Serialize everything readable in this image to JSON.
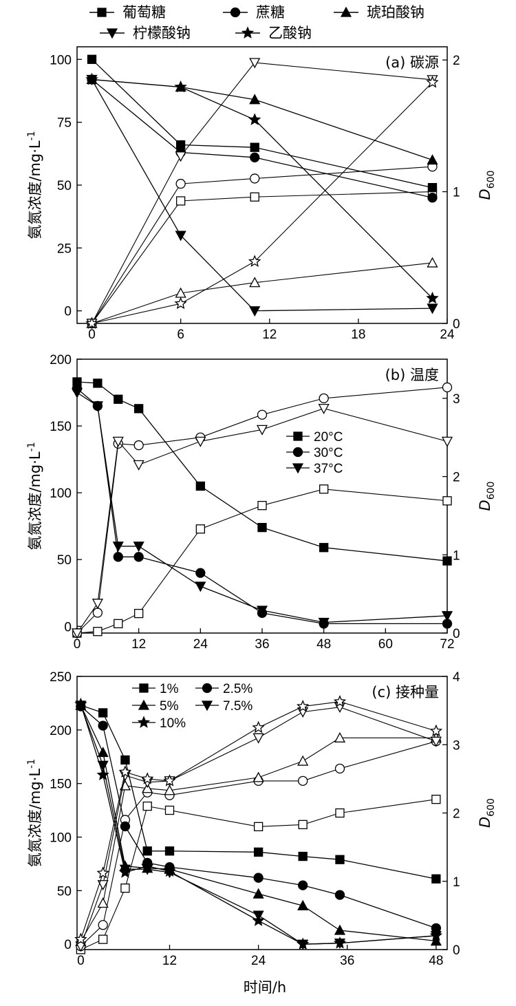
{
  "legend_top": [
    "葡萄糖",
    "蔗糖",
    "琥珀酸钠",
    "柠檬酸钠",
    "乙酸钠"
  ],
  "xlabel": "时间/h",
  "chart_data": [
    {
      "type": "line",
      "title": "(a) 碳源",
      "ylabel": "氨氮浓度/mg·L",
      "ylabel_sup": "-1",
      "y2label": "D",
      "y2label_sub": "600",
      "xlim": [
        -1,
        24
      ],
      "ylim": [
        -5,
        105
      ],
      "y2lim": [
        0,
        2.1
      ],
      "xticks": [
        "0",
        "6",
        "12",
        "18",
        "24"
      ],
      "yticks": [
        "0",
        "25",
        "50",
        "75",
        "100"
      ],
      "y2ticks": [
        "0",
        "1",
        "2"
      ],
      "series": [
        {
          "name": "葡萄糖",
          "marker": "square",
          "x": [
            0,
            6,
            11,
            23
          ],
          "y": [
            100,
            66,
            65,
            49
          ],
          "od": [
            0,
            0.93,
            0.96,
            1.0
          ]
        },
        {
          "name": "蔗糖",
          "marker": "circle",
          "x": [
            0,
            6,
            11,
            23
          ],
          "y": [
            92,
            63,
            61,
            45
          ],
          "od": [
            0,
            1.06,
            1.1,
            1.19
          ]
        },
        {
          "name": "琥珀酸钠",
          "marker": "triangle-up",
          "x": [
            0,
            6,
            11,
            23
          ],
          "y": [
            92,
            89,
            84,
            60
          ],
          "od": [
            0,
            0.23,
            0.31,
            0.46
          ]
        },
        {
          "name": "柠檬酸钠",
          "marker": "triangle-down",
          "x": [
            0,
            6,
            11,
            23
          ],
          "y": [
            92,
            30,
            0,
            1
          ],
          "od": [
            0,
            1.27,
            1.98,
            1.85
          ]
        },
        {
          "name": "乙酸钠",
          "marker": "star",
          "x": [
            0,
            6,
            11,
            23
          ],
          "y": [
            92,
            89,
            76,
            5
          ],
          "od": [
            0,
            0.15,
            0.47,
            1.83
          ]
        }
      ]
    },
    {
      "type": "line",
      "title": "(b) 温度",
      "ylabel": "氨氮浓度/mg·L",
      "ylabel_sup": "-1",
      "y2label": "D",
      "y2label_sub": "600",
      "xlim": [
        0,
        72
      ],
      "ylim": [
        -5,
        200
      ],
      "y2lim": [
        0,
        3.5
      ],
      "xticks": [
        "0",
        "12",
        "24",
        "36",
        "48",
        "60",
        "72"
      ],
      "yticks": [
        "0",
        "50",
        "100",
        "150",
        "200"
      ],
      "y2ticks": [
        "0",
        "1",
        "2",
        "3"
      ],
      "legend": [
        "20°C",
        "30°C",
        "37°C"
      ],
      "series": [
        {
          "name": "20°C",
          "marker": "square",
          "x": [
            0,
            4,
            8,
            12,
            24,
            36,
            48,
            72
          ],
          "y": [
            183,
            182,
            170,
            163,
            105,
            74,
            59,
            49
          ],
          "od": [
            0,
            0.02,
            0.12,
            0.25,
            1.33,
            1.63,
            1.84,
            1.69
          ]
        },
        {
          "name": "30°C",
          "marker": "circle",
          "x": [
            0,
            4,
            8,
            12,
            24,
            36,
            48,
            72
          ],
          "y": [
            178,
            165,
            52,
            52,
            40,
            10,
            2,
            2
          ],
          "od": [
            0,
            0.26,
            2.42,
            2.4,
            2.5,
            2.79,
            3.0,
            3.14
          ]
        },
        {
          "name": "37°C",
          "marker": "triangle-down",
          "x": [
            0,
            4,
            8,
            12,
            24,
            36,
            48,
            72
          ],
          "y": [
            175,
            165,
            60,
            60,
            30,
            12,
            3,
            8
          ],
          "od": [
            0,
            0.38,
            2.45,
            2.15,
            2.45,
            2.6,
            2.87,
            2.45
          ]
        }
      ]
    },
    {
      "type": "line",
      "title": "(c) 接种量",
      "ylabel": "氨氮浓度/mg·L",
      "ylabel_sup": "-1",
      "y2label": "D",
      "y2label_sub": "600",
      "xlim": [
        -0.5,
        49.5
      ],
      "ylim": [
        -5,
        250
      ],
      "y2lim": [
        0,
        4
      ],
      "xticks": [
        "0",
        "12",
        "24",
        "36",
        "48"
      ],
      "yticks": [
        "0",
        "50",
        "100",
        "150",
        "200",
        "250"
      ],
      "y2ticks": [
        "0",
        "1",
        "2",
        "3",
        "4"
      ],
      "legend": [
        "1%",
        "2.5%",
        "5%",
        "7.5%",
        "10%"
      ],
      "series": [
        {
          "name": "1%",
          "marker": "square",
          "x": [
            0,
            3,
            6,
            9,
            12,
            24,
            30,
            35,
            48
          ],
          "y": [
            223,
            216,
            172,
            87,
            87,
            86,
            82,
            79,
            61
          ],
          "od": [
            0,
            0.15,
            0.9,
            2.1,
            2.04,
            1.8,
            1.83,
            2.0,
            2.2
          ]
        },
        {
          "name": "2.5%",
          "marker": "circle",
          "x": [
            0,
            3,
            6,
            9,
            12,
            24,
            30,
            35,
            48
          ],
          "y": [
            222,
            204,
            110,
            76,
            72,
            62,
            55,
            46,
            15
          ],
          "od": [
            0.05,
            0.36,
            1.9,
            2.3,
            2.26,
            2.47,
            2.47,
            2.65,
            3.05
          ]
        },
        {
          "name": "5%",
          "marker": "triangle-up",
          "x": [
            0,
            3,
            6,
            9,
            12,
            24,
            30,
            35,
            48
          ],
          "y": [
            223,
            179,
            73,
            71,
            70,
            47,
            36,
            13,
            3
          ],
          "od": [
            0.12,
            0.68,
            2.4,
            2.36,
            2.33,
            2.52,
            2.76,
            3.1,
            3.1
          ]
        },
        {
          "name": "7.5%",
          "marker": "triangle-down",
          "x": [
            0,
            3,
            6,
            9,
            12,
            24,
            30,
            35,
            48
          ],
          "y": [
            223,
            167,
            70,
            70,
            67,
            27,
            0,
            1,
            8
          ],
          "od": [
            0.05,
            0.95,
            2.55,
            2.45,
            2.47,
            3.1,
            3.48,
            3.55,
            3.05
          ]
        },
        {
          "name": "10%",
          "marker": "star",
          "x": [
            0,
            3,
            6,
            9,
            12,
            24,
            30,
            35,
            48
          ],
          "y": [
            224,
            158,
            67,
            73,
            68,
            22,
            0,
            1,
            8
          ],
          "od": [
            0.15,
            1.12,
            2.6,
            2.5,
            2.47,
            3.25,
            3.56,
            3.63,
            3.2
          ]
        }
      ]
    }
  ]
}
